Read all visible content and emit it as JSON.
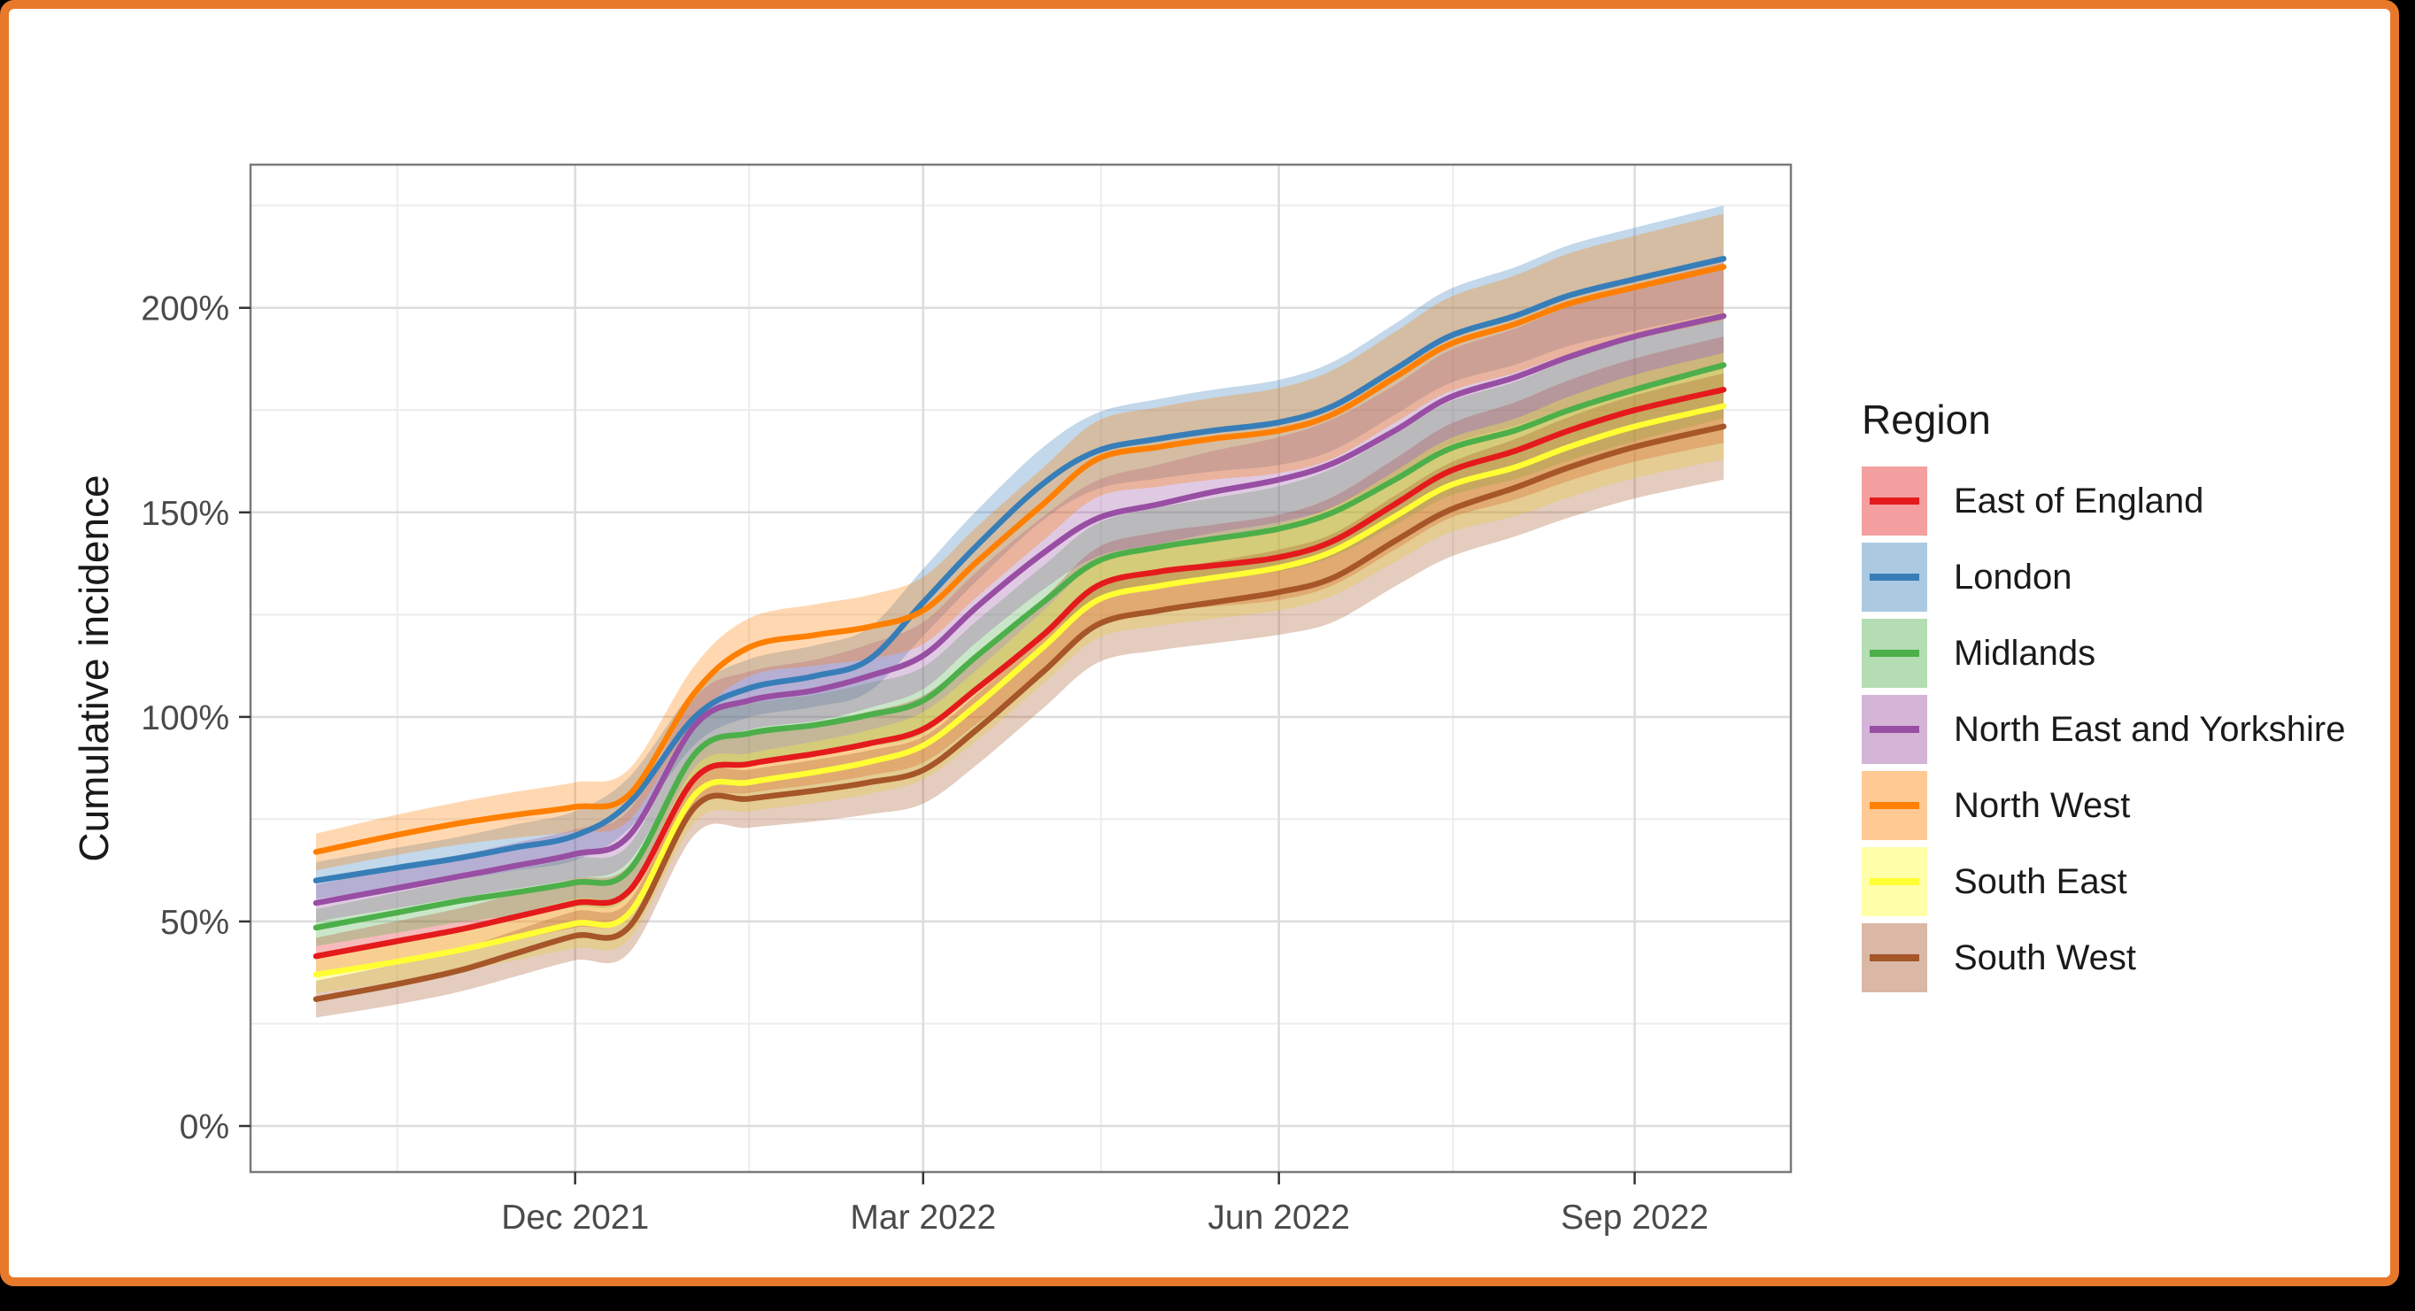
{
  "frame": {
    "border_color": "#E8792B",
    "background": "#ffffff",
    "page_background": "#000000"
  },
  "chart_data": {
    "type": "line",
    "title": "",
    "xlabel": "",
    "ylabel": "Cumulative incidence",
    "legend_title": "Region",
    "legend_position": "right",
    "grid": true,
    "panel_border": true,
    "ribbon_alpha": 0.3,
    "x_domain": [
      "2021-09-25",
      "2022-09-24"
    ],
    "y_domain": [
      0,
      235
    ],
    "y_ticks": [
      {
        "value": 0,
        "label": "0%"
      },
      {
        "value": 50,
        "label": "50%"
      },
      {
        "value": 100,
        "label": "100%"
      },
      {
        "value": 150,
        "label": "150%"
      },
      {
        "value": 200,
        "label": "200%"
      }
    ],
    "y_minor": [
      25,
      75,
      125,
      175,
      225
    ],
    "x_ticks": [
      {
        "date": "2021-12-01",
        "label": "Dec 2021"
      },
      {
        "date": "2022-03-01",
        "label": "Mar 2022"
      },
      {
        "date": "2022-06-01",
        "label": "Jun 2022"
      },
      {
        "date": "2022-09-01",
        "label": "Sep 2022"
      }
    ],
    "x_minor_dates": [
      "2021-10-16",
      "2022-01-15",
      "2022-04-16",
      "2022-07-16"
    ],
    "dates": [
      "2021-09-25",
      "2021-10-15",
      "2021-11-01",
      "2021-11-15",
      "2021-12-01",
      "2021-12-15",
      "2022-01-01",
      "2022-01-15",
      "2022-02-01",
      "2022-02-15",
      "2022-03-01",
      "2022-03-15",
      "2022-04-01",
      "2022-04-15",
      "2022-05-01",
      "2022-05-15",
      "2022-06-01",
      "2022-06-15",
      "2022-07-01",
      "2022-07-15",
      "2022-08-01",
      "2022-08-15",
      "2022-09-01",
      "2022-09-24"
    ],
    "ci_halfwidth": [
      4.5,
      4.9,
      5.2,
      5.6,
      6.0,
      6.3,
      6.7,
      7.1,
      7.5,
      7.8,
      8.2,
      8.6,
      8.9,
      9.3,
      9.7,
      10.0,
      10.4,
      10.8,
      11.1,
      11.5,
      11.9,
      12.3,
      12.6,
      13.0
    ],
    "series": [
      {
        "name": "East of England",
        "color": "#E41A1C",
        "values": [
          41.5,
          45,
          48,
          51,
          54.5,
          57.5,
          85,
          88.5,
          91,
          93.5,
          97,
          107,
          120,
          132,
          135.5,
          137,
          139,
          143,
          152,
          160,
          165,
          170,
          175,
          180
        ]
      },
      {
        "name": "London",
        "color": "#377EB8",
        "values": [
          60,
          63,
          65.5,
          68,
          71,
          79,
          100,
          107,
          110,
          114,
          128,
          142,
          157,
          165,
          168,
          170,
          172,
          176,
          185,
          193,
          198,
          203,
          207,
          212
        ]
      },
      {
        "name": "Midlands",
        "color": "#4DAF4A",
        "values": [
          48.5,
          52,
          55,
          57,
          59.5,
          62.5,
          91,
          96,
          98,
          100.5,
          104,
          115,
          128,
          138,
          141.5,
          143.5,
          146,
          150,
          158,
          165.5,
          170,
          175,
          180,
          186
        ]
      },
      {
        "name": "North East and Yorkshire",
        "color": "#984EA3",
        "values": [
          54.5,
          58,
          61,
          63.5,
          66.5,
          71,
          98,
          104,
          106.5,
          110,
          115,
          127,
          140,
          148.5,
          152,
          155,
          158,
          162,
          170,
          178,
          183,
          188,
          193,
          198
        ]
      },
      {
        "name": "North West",
        "color": "#FF7F00",
        "values": [
          67,
          71,
          74,
          76,
          78,
          81,
          106,
          117,
          120,
          122,
          126,
          138,
          152,
          163,
          166,
          168,
          170,
          174,
          183,
          191,
          196,
          201,
          205,
          210
        ]
      },
      {
        "name": "South East",
        "color": "#FFFF33",
        "values": [
          37,
          40,
          43,
          46,
          49.5,
          52,
          81,
          84,
          86.5,
          89,
          93,
          103,
          117,
          128.5,
          132,
          134,
          136.5,
          140.5,
          149,
          156.5,
          161,
          166,
          171,
          176
        ]
      },
      {
        "name": "South West",
        "color": "#A65628",
        "values": [
          31,
          34.5,
          38,
          42,
          46.5,
          48.7,
          78,
          80,
          82,
          84,
          87,
          97,
          111,
          122.5,
          126,
          128,
          130.5,
          134,
          143,
          150.5,
          156,
          161,
          166,
          171
        ]
      }
    ]
  },
  "legend": {
    "title": "Region",
    "items": [
      {
        "label": "East of England",
        "color": "#E41A1C"
      },
      {
        "label": "London",
        "color": "#377EB8"
      },
      {
        "label": "Midlands",
        "color": "#4DAF4A"
      },
      {
        "label": "North East and Yorkshire",
        "color": "#984EA3"
      },
      {
        "label": "North West",
        "color": "#FF7F00"
      },
      {
        "label": "South East",
        "color": "#FFFF33"
      },
      {
        "label": "South West",
        "color": "#A65628"
      }
    ]
  }
}
